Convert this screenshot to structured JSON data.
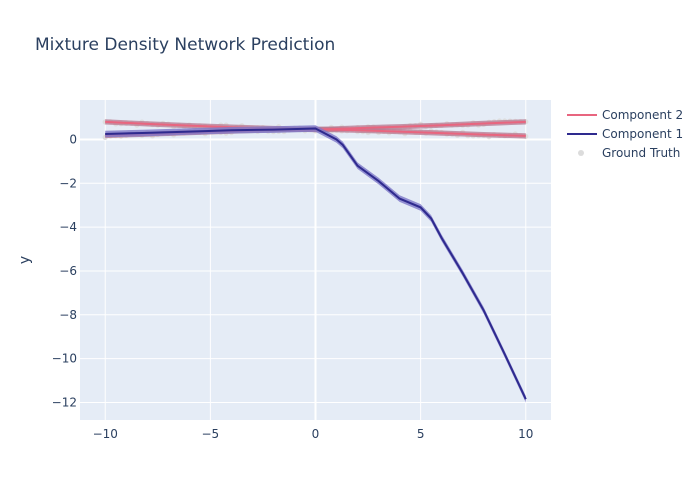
{
  "chart_data": {
    "type": "line",
    "title": "Mixture Density Network Prediction",
    "xlabel": "",
    "ylabel": "y",
    "xlim": [
      -11.2,
      11.2
    ],
    "ylim": [
      -12.8,
      1.8
    ],
    "xticks": [
      -10,
      -5,
      0,
      5,
      10
    ],
    "yticks": [
      0,
      -2,
      -4,
      -6,
      -8,
      -10,
      -12
    ],
    "grid": true,
    "legend_position": "top-right",
    "colors": {
      "plot_bg": "#e5ecf6",
      "grid": "#ffffff",
      "component_2": "#e8657f",
      "component_2_band": "#b7778f",
      "component_1": "#2e2a8e",
      "component_1_band": "#7d78c8",
      "ground_truth": "#dcdcdc"
    },
    "series": [
      {
        "name": "Component 2",
        "type": "line-band",
        "lines": [
          {
            "x": [
              -10,
              -8,
              -6,
              -4,
              -2,
              0,
              2,
              4,
              6,
              8,
              10
            ],
            "y": [
              0.8,
              0.71,
              0.63,
              0.56,
              0.5,
              0.45,
              0.52,
              0.58,
              0.65,
              0.73,
              0.8
            ]
          },
          {
            "x": [
              -10,
              -8,
              -6,
              -4,
              -2,
              0,
              2,
              4,
              6,
              8,
              10
            ],
            "y": [
              0.18,
              0.24,
              0.31,
              0.38,
              0.44,
              0.47,
              0.42,
              0.36,
              0.29,
              0.22,
              0.16
            ]
          }
        ],
        "band_halfwidth": 0.12
      },
      {
        "name": "Component 1",
        "type": "line-band",
        "x": [
          -10,
          -8,
          -6,
          -4,
          -2,
          0,
          1,
          1.3,
          2,
          3,
          4,
          5,
          5.5,
          6,
          7,
          8,
          9,
          10
        ],
        "y": [
          0.25,
          0.3,
          0.36,
          0.42,
          0.45,
          0.5,
          0.0,
          -0.25,
          -1.2,
          -1.9,
          -2.7,
          -3.1,
          -3.6,
          -4.5,
          -6.1,
          -7.8,
          -9.8,
          -11.85
        ],
        "band_halfwidth": 0.15
      },
      {
        "name": "Ground Truth",
        "type": "scatter",
        "note": "two fans of points along Component 2 curves"
      }
    ],
    "legend": [
      {
        "label": "Component 2",
        "kind": "line",
        "color": "#e8657f"
      },
      {
        "label": "Component 1",
        "kind": "line",
        "color": "#2e2a8e"
      },
      {
        "label": "Ground Truth",
        "kind": "marker",
        "color": "#dcdcdc"
      }
    ]
  }
}
